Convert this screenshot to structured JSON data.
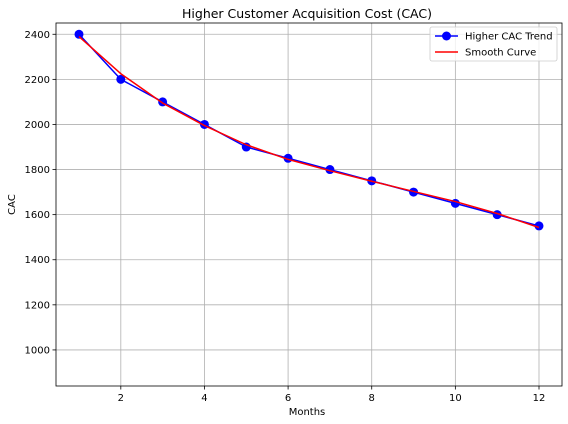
{
  "chart_data": {
    "type": "line",
    "title": "Higher Customer Acquisition Cost (CAC)",
    "xlabel": "Months",
    "ylabel": "CAC",
    "xlim": [
      0.45,
      12.55
    ],
    "ylim": [
      840,
      2450
    ],
    "xticks": [
      2,
      4,
      6,
      8,
      10,
      12
    ],
    "yticks": [
      1000,
      1200,
      1400,
      1600,
      1800,
      2000,
      2200,
      2400
    ],
    "grid": true,
    "legend_position": "top-right",
    "series": [
      {
        "name": "Higher CAC Trend",
        "color": "#0000ff",
        "marker": "circle",
        "x": [
          1,
          2,
          3,
          4,
          5,
          6,
          7,
          8,
          9,
          10,
          11,
          12
        ],
        "y": [
          2400,
          2200,
          2100,
          2000,
          1900,
          1850,
          1800,
          1750,
          1700,
          1650,
          1600,
          1550
        ]
      },
      {
        "name": "Smooth Curve",
        "color": "#ff0000",
        "marker": "none",
        "x": [
          1,
          2,
          3,
          4,
          5,
          6,
          7,
          8,
          9,
          10,
          11,
          12
        ],
        "y": [
          2390,
          2225,
          2095,
          1995,
          1910,
          1845,
          1795,
          1748,
          1703,
          1658,
          1605,
          1543
        ]
      }
    ]
  }
}
